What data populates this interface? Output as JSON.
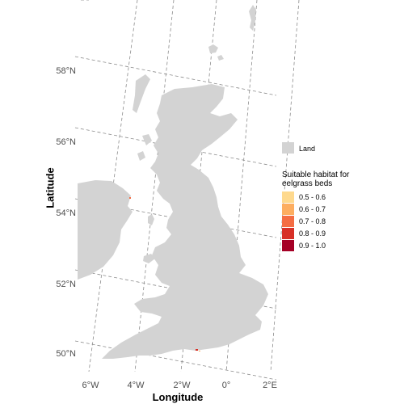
{
  "axes": {
    "xlabel": "Longitude",
    "ylabel": "Latitude",
    "xticks": [
      "6°W",
      "4°W",
      "2°W",
      "0°",
      "2°E"
    ],
    "yticks": [
      "58°N",
      "56°N",
      "54°N",
      "52°N",
      "50°N"
    ]
  },
  "legend": {
    "land_label": "Land",
    "land_color": "#d3d3d3",
    "habitat_title_line1": "Suitable habitat for",
    "habitat_title_line2": "eelgrass beds",
    "classes": [
      {
        "label": "0.5 - 0.6",
        "color": "#fed98e"
      },
      {
        "label": "0.6 - 0.7",
        "color": "#fdae61"
      },
      {
        "label": "0.7 - 0.8",
        "color": "#f46d43"
      },
      {
        "label": "0.8 - 0.9",
        "color": "#d73027"
      },
      {
        "label": "0.9 - 1.0",
        "color": "#a50026"
      }
    ]
  },
  "chart_data": {
    "type": "map",
    "region": "Great Britain and eastern Ireland",
    "xlim": [
      -6,
      2
    ],
    "ylim": [
      49.8,
      59
    ],
    "graticule": "dashed",
    "legend_position": "right"
  }
}
